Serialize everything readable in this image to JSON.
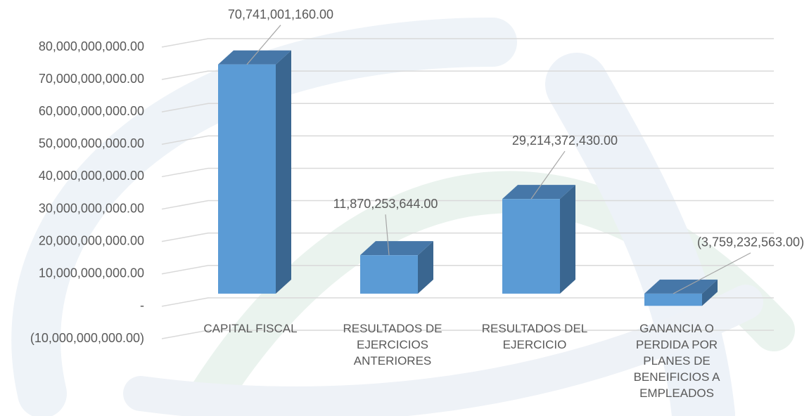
{
  "chart_data": {
    "type": "bar3d",
    "categories": [
      "CAPITAL FISCAL",
      "RESULTADOS DE EJERCICIOS ANTERIORES",
      "RESULTADOS DEL EJERCICIO",
      "GANANCIA O PERDIDA POR PLANES DE BENEIFICIOS A EMPLEADOS"
    ],
    "values": [
      70741001160,
      11870253644,
      29214372430,
      -3759232563
    ],
    "value_labels": [
      "70,741,001,160.00",
      "11,870,253,644.00",
      "29,214,372,430.00",
      "(3,759,232,563.00)"
    ],
    "color": "#5b9bd5",
    "ylim": [
      -10000000000,
      80000000000
    ],
    "yticks": [
      {
        "value": -10000000000,
        "label": "(10,000,000,000.00)"
      },
      {
        "value": 0,
        "label": "-"
      },
      {
        "value": 10000000000,
        "label": "10,000,000,000.00"
      },
      {
        "value": 20000000000,
        "label": "20,000,000,000.00"
      },
      {
        "value": 30000000000,
        "label": "30,000,000,000.00"
      },
      {
        "value": 40000000000,
        "label": "40,000,000,000.00"
      },
      {
        "value": 50000000000,
        "label": "50,000,000,000.00"
      },
      {
        "value": 60000000000,
        "label": "60,000,000,000.00"
      },
      {
        "value": 70000000000,
        "label": "70,000,000,000.00"
      },
      {
        "value": 80000000000,
        "label": "80,000,000,000.00"
      }
    ],
    "grid": true
  }
}
